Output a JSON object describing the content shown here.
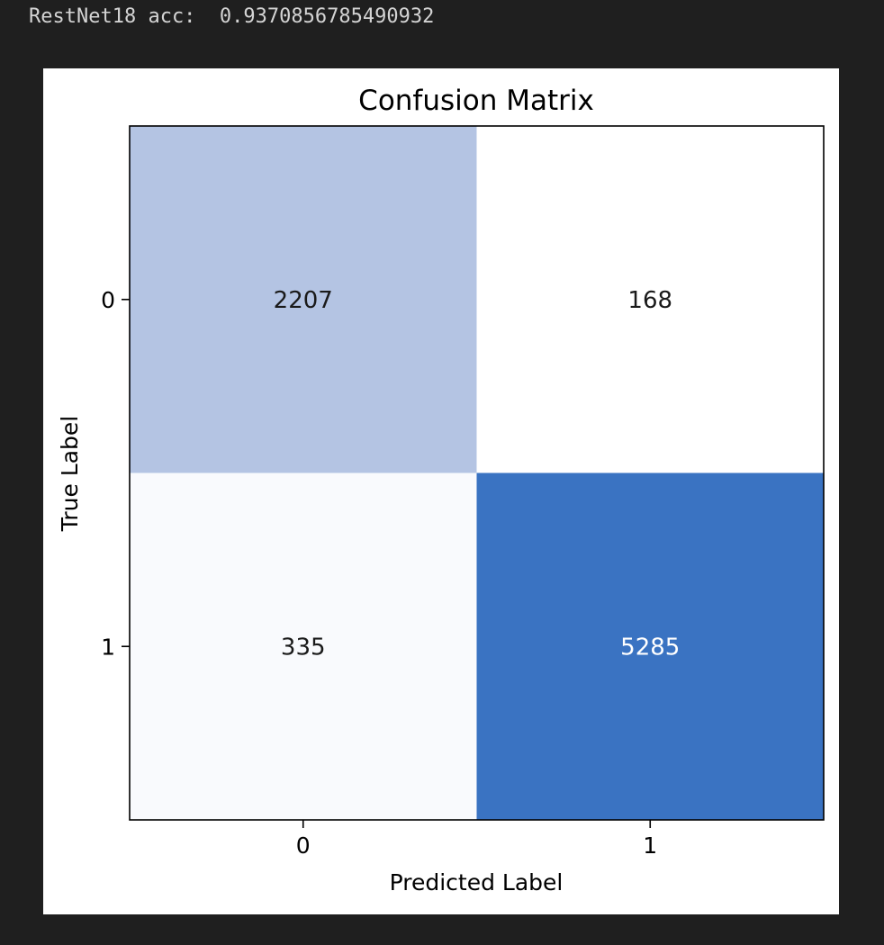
{
  "output": {
    "text": "RestNet18 acc:  0.9370856785490932"
  },
  "chart_data": {
    "type": "heatmap",
    "title": "Confusion Matrix",
    "xlabel": "Predicted Label",
    "ylabel": "True Label",
    "x_categories": [
      "0",
      "1"
    ],
    "y_categories": [
      "0",
      "1"
    ],
    "matrix": [
      [
        2207,
        168
      ],
      [
        335,
        5285
      ]
    ],
    "colormap": "Blues",
    "colors": {
      "low": "#ffffff",
      "mid": "#b8c6e4",
      "high": "#3a73c2",
      "dark_text": "#1a1a1a",
      "light_text": "#ffffff"
    }
  }
}
